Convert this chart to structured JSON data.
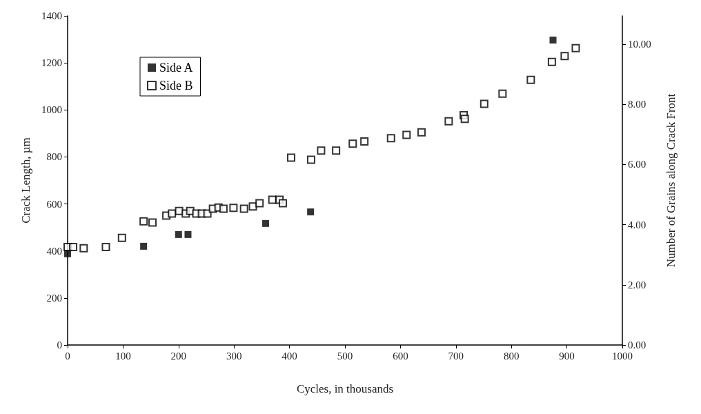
{
  "chart_data": {
    "type": "scatter",
    "xlabel": "Cycles, in thousands",
    "ylabel": "Crack Length, µm",
    "y2label": "Number of Grains along Crack Front",
    "xlim": [
      0,
      1000
    ],
    "xticks": [
      0,
      100,
      200,
      300,
      400,
      500,
      600,
      700,
      800,
      900,
      1000
    ],
    "ylim": [
      0,
      1400
    ],
    "yticks": [
      0,
      200,
      400,
      600,
      800,
      1000,
      1200,
      1400
    ],
    "y2lim": [
      0,
      10.94
    ],
    "y2ticks": [
      {
        "value": 0,
        "label": "0.00"
      },
      {
        "value": 2,
        "label": "2.00"
      },
      {
        "value": 4,
        "label": "4.00"
      },
      {
        "value": 6,
        "label": "6.00"
      },
      {
        "value": 8,
        "label": "8.00"
      },
      {
        "value": 10,
        "label": "10.00"
      }
    ],
    "grid": false,
    "legend": "top left",
    "marker": "square",
    "series": [
      {
        "name": "Side A",
        "color": "#000000",
        "x": [
          0,
          137,
          200,
          217,
          357,
          438,
          875
        ],
        "values": [
          388,
          420,
          470,
          470,
          517,
          566,
          1297
        ]
      },
      {
        "name": "Side B",
        "color": "#000000",
        "x": [
          0,
          10,
          29,
          69,
          98,
          137,
          153,
          178,
          188,
          201,
          213,
          221,
          232,
          242,
          252,
          262,
          272,
          281,
          299,
          318,
          334,
          346,
          369,
          382,
          388,
          403,
          439,
          457,
          484,
          514,
          535,
          583,
          611,
          638,
          687,
          714,
          716,
          751,
          784,
          835,
          873,
          896,
          916
        ],
        "values": [
          417,
          417,
          412,
          417,
          456,
          526,
          521,
          550,
          559,
          570,
          559,
          570,
          559,
          559,
          559,
          580,
          585,
          580,
          583,
          580,
          589,
          603,
          618,
          618,
          603,
          797,
          788,
          827,
          827,
          856,
          866,
          880,
          894,
          905,
          952,
          977,
          962,
          1026,
          1069,
          1128,
          1204,
          1229,
          1263
        ]
      }
    ]
  }
}
